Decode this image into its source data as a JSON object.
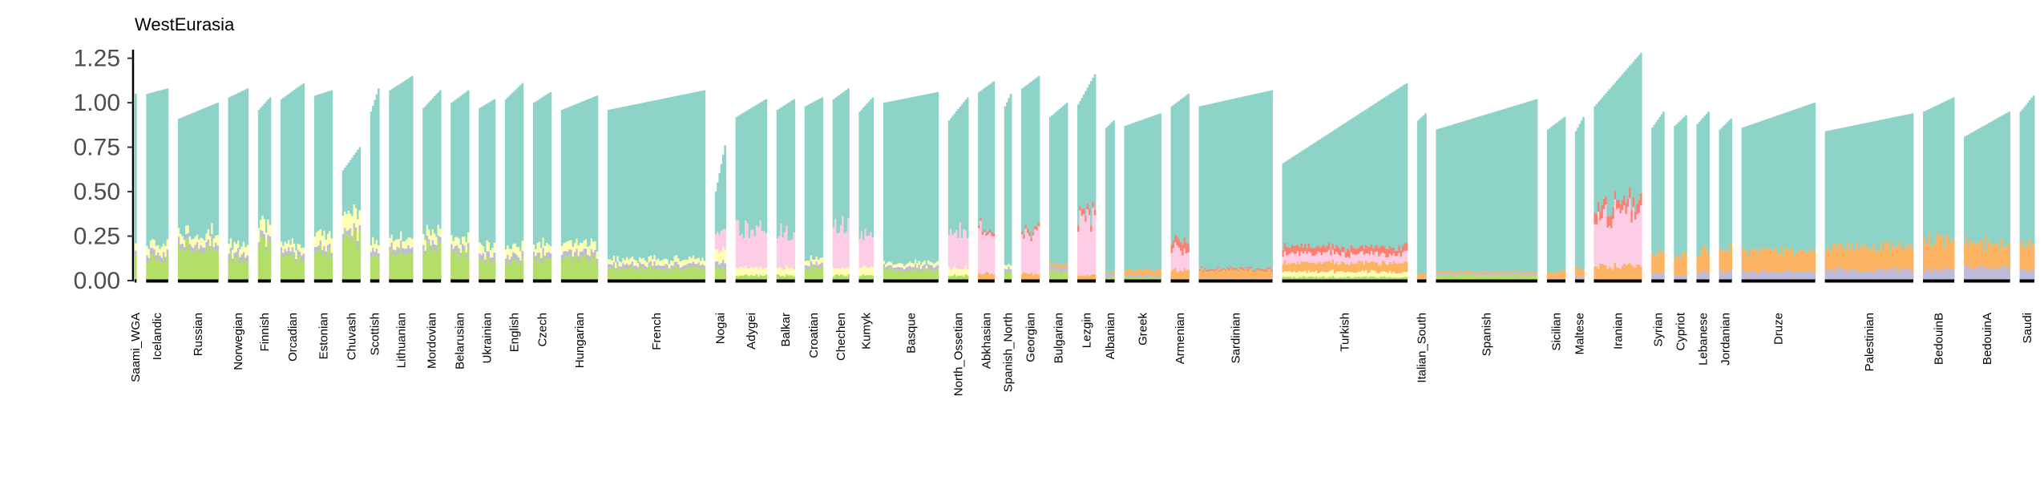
{
  "chart_data": {
    "type": "bar",
    "stacked": true,
    "title": "WestEurasia",
    "xlabel": "",
    "ylabel": "",
    "ylim": [
      0,
      1.28
    ],
    "yticks": [
      "0.00",
      "0.25",
      "0.50",
      "0.75",
      "1.00",
      "1.25"
    ],
    "ytick_values": [
      0,
      0.25,
      0.5,
      0.75,
      1.0,
      1.25
    ],
    "grid": false,
    "legend": "none",
    "components": [
      "green",
      "purple",
      "yellow",
      "orange",
      "pink",
      "red",
      "teal"
    ],
    "colors": {
      "teal": "#8dd3c7",
      "green": "#b3de69",
      "yellow": "#ffffb3",
      "purple": "#bebada",
      "pink": "#fccde5",
      "orange": "#fdb462",
      "red": "#fb8072",
      "baseline": "#000000"
    },
    "groups": [
      {
        "name": "Saami_WGA",
        "n": 1,
        "total": [
          1.05,
          1.05
        ],
        "comp": {
          "green": 0.12,
          "purple": 0.03,
          "yellow": 0.04
        }
      },
      {
        "name": "Icelandic",
        "n": 12,
        "total": [
          1.05,
          1.08
        ],
        "comp": {
          "green": 0.12,
          "purple": 0.03,
          "yellow": 0.05
        }
      },
      {
        "name": "Russian",
        "n": 22,
        "total": [
          0.91,
          1.0
        ],
        "comp": {
          "green": 0.2,
          "purple": 0.03,
          "yellow": 0.05
        }
      },
      {
        "name": "Norwegian",
        "n": 11,
        "total": [
          1.03,
          1.08
        ],
        "comp": {
          "green": 0.13,
          "purple": 0.03,
          "yellow": 0.05
        }
      },
      {
        "name": "Finnish",
        "n": 7,
        "total": [
          0.96,
          1.03
        ],
        "comp": {
          "green": 0.22,
          "purple": 0.03,
          "yellow": 0.07
        }
      },
      {
        "name": "Orcadian",
        "n": 13,
        "total": [
          1.02,
          1.11
        ],
        "comp": {
          "green": 0.13,
          "purple": 0.03,
          "yellow": 0.04
        }
      },
      {
        "name": "Estonian",
        "n": 10,
        "total": [
          1.04,
          1.07
        ],
        "comp": {
          "green": 0.16,
          "purple": 0.03,
          "yellow": 0.07
        }
      },
      {
        "name": "Chuvash",
        "n": 10,
        "total": [
          0.62,
          0.75
        ],
        "comp": {
          "green": 0.24,
          "purple": 0.03,
          "yellow": 0.1
        }
      },
      {
        "name": "Scottish",
        "n": 5,
        "total": [
          0.95,
          1.08
        ],
        "comp": {
          "green": 0.14,
          "purple": 0.03,
          "yellow": 0.05
        }
      },
      {
        "name": "Lithuanian",
        "n": 13,
        "total": [
          1.07,
          1.15
        ],
        "comp": {
          "green": 0.16,
          "purple": 0.03,
          "yellow": 0.05
        }
      },
      {
        "name": "Mordovian",
        "n": 10,
        "total": [
          0.97,
          1.07
        ],
        "comp": {
          "green": 0.18,
          "purple": 0.03,
          "yellow": 0.05
        }
      },
      {
        "name": "Belarusian",
        "n": 10,
        "total": [
          1.0,
          1.07
        ],
        "comp": {
          "green": 0.15,
          "purple": 0.03,
          "yellow": 0.05
        }
      },
      {
        "name": "Ukrainian",
        "n": 9,
        "total": [
          0.97,
          1.02
        ],
        "comp": {
          "green": 0.12,
          "purple": 0.03,
          "yellow": 0.05
        }
      },
      {
        "name": "English",
        "n": 10,
        "total": [
          1.02,
          1.11
        ],
        "comp": {
          "green": 0.11,
          "purple": 0.03,
          "yellow": 0.05
        }
      },
      {
        "name": "Czech",
        "n": 10,
        "total": [
          1.0,
          1.06
        ],
        "comp": {
          "green": 0.12,
          "purple": 0.03,
          "yellow": 0.05
        }
      },
      {
        "name": "Hungarian",
        "n": 20,
        "total": [
          0.96,
          1.04
        ],
        "comp": {
          "green": 0.12,
          "purple": 0.03,
          "yellow": 0.05
        }
      },
      {
        "name": "French",
        "n": 53,
        "total": [
          0.96,
          1.07
        ],
        "comp": {
          "green": 0.07,
          "purple": 0.02,
          "yellow": 0.03
        }
      },
      {
        "name": "Nogai",
        "n": 6,
        "total": [
          0.5,
          0.76
        ],
        "comp": {
          "green": 0.07,
          "pink": 0.1,
          "purple": 0.03,
          "yellow": 0.07
        }
      },
      {
        "name": "Adygei",
        "n": 17,
        "total": [
          0.92,
          1.02
        ],
        "comp": {
          "pink": 0.22,
          "green": 0.03,
          "yellow": 0.04
        }
      },
      {
        "name": "Balkar",
        "n": 10,
        "total": [
          0.96,
          1.02
        ],
        "comp": {
          "pink": 0.2,
          "green": 0.03,
          "yellow": 0.04
        }
      },
      {
        "name": "Croatian",
        "n": 10,
        "total": [
          0.98,
          1.03
        ],
        "comp": {
          "green": 0.07,
          "purple": 0.02,
          "yellow": 0.03
        }
      },
      {
        "name": "Chechen",
        "n": 9,
        "total": [
          1.02,
          1.08
        ],
        "comp": {
          "pink": 0.26,
          "green": 0.03,
          "yellow": 0.04
        }
      },
      {
        "name": "Kumyk",
        "n": 8,
        "total": [
          0.95,
          1.03
        ],
        "comp": {
          "pink": 0.18,
          "green": 0.03,
          "yellow": 0.05
        }
      },
      {
        "name": "Basque",
        "n": 30,
        "total": [
          1.0,
          1.06
        ],
        "comp": {
          "green": 0.06,
          "purple": 0.02,
          "yellow": 0.02
        }
      },
      {
        "name": "North_Ossetian",
        "n": 11,
        "total": [
          0.9,
          1.03
        ],
        "comp": {
          "pink": 0.21,
          "green": 0.03,
          "yellow": 0.04
        }
      },
      {
        "name": "Abkhasian",
        "n": 9,
        "total": [
          1.06,
          1.12
        ],
        "comp": {
          "pink": 0.24,
          "orange": 0.04,
          "red": 0.02
        }
      },
      {
        "name": "Spanish_North",
        "n": 4,
        "total": [
          0.98,
          1.05
        ],
        "comp": {
          "green": 0.05,
          "purple": 0.02,
          "yellow": 0.02
        }
      },
      {
        "name": "Georgian",
        "n": 10,
        "total": [
          1.08,
          1.15
        ],
        "comp": {
          "pink": 0.22,
          "orange": 0.04,
          "red": 0.02
        }
      },
      {
        "name": "Bulgarian",
        "n": 10,
        "total": [
          0.92,
          1.0
        ],
        "comp": {
          "green": 0.05,
          "purple": 0.02,
          "orange": 0.02
        }
      },
      {
        "name": "Lezgin",
        "n": 10,
        "total": [
          0.99,
          1.16
        ],
        "comp": {
          "pink": 0.3,
          "orange": 0.03,
          "red": 0.03
        }
      },
      {
        "name": "Albanian",
        "n": 5,
        "total": [
          0.86,
          0.9
        ],
        "comp": {
          "green": 0.02,
          "purple": 0.02,
          "orange": 0.01
        }
      },
      {
        "name": "Greek",
        "n": 20,
        "total": [
          0.87,
          0.94
        ],
        "comp": {
          "orange": 0.03,
          "purple": 0.01,
          "green": 0.02
        }
      },
      {
        "name": "Armenian",
        "n": 10,
        "total": [
          0.98,
          1.05
        ],
        "comp": {
          "pink": 0.12,
          "orange": 0.06,
          "red": 0.05
        }
      },
      {
        "name": "Sardinian",
        "n": 40,
        "total": [
          0.98,
          1.07
        ],
        "comp": {
          "orange": 0.05,
          "purple": 0.01,
          "red": 0.01
        }
      },
      {
        "name": "Turkish",
        "n": 68,
        "total": [
          0.66,
          1.11
        ],
        "comp": {
          "pink": 0.05,
          "orange": 0.05,
          "red": 0.04,
          "yellow": 0.03,
          "green": 0.02
        }
      },
      {
        "name": "Italian_South",
        "n": 5,
        "total": [
          0.9,
          0.94
        ],
        "comp": {
          "orange": 0.03,
          "purple": 0.01
        }
      },
      {
        "name": "Spanish",
        "n": 55,
        "total": [
          0.85,
          1.02
        ],
        "comp": {
          "green": 0.03,
          "purple": 0.01,
          "orange": 0.01
        }
      },
      {
        "name": "Sicilian",
        "n": 10,
        "total": [
          0.85,
          0.92
        ],
        "comp": {
          "orange": 0.04,
          "purple": 0.01
        }
      },
      {
        "name": "Maltese",
        "n": 5,
        "total": [
          0.84,
          0.92
        ],
        "comp": {
          "orange": 0.05,
          "purple": 0.02
        }
      },
      {
        "name": "Iranian",
        "n": 26,
        "total": [
          0.98,
          1.28
        ],
        "comp": {
          "pink": 0.3,
          "orange": 0.08,
          "red": 0.06
        }
      },
      {
        "name": "Syrian",
        "n": 7,
        "total": [
          0.86,
          0.95
        ],
        "comp": {
          "orange": 0.11,
          "purple": 0.04
        }
      },
      {
        "name": "Cypriot",
        "n": 7,
        "total": [
          0.87,
          0.93
        ],
        "comp": {
          "orange": 0.11,
          "purple": 0.03
        }
      },
      {
        "name": "Lebanese",
        "n": 7,
        "total": [
          0.88,
          0.95
        ],
        "comp": {
          "orange": 0.12,
          "purple": 0.05
        }
      },
      {
        "name": "Jordanian",
        "n": 7,
        "total": [
          0.85,
          0.91
        ],
        "comp": {
          "orange": 0.12,
          "purple": 0.05
        }
      },
      {
        "name": "Druze",
        "n": 40,
        "total": [
          0.86,
          1.0
        ],
        "comp": {
          "orange": 0.12,
          "purple": 0.05
        }
      },
      {
        "name": "Palestinian",
        "n": 48,
        "total": [
          0.84,
          0.94
        ],
        "comp": {
          "orange": 0.13,
          "purple": 0.06
        }
      },
      {
        "name": "BedouinB",
        "n": 17,
        "total": [
          0.95,
          1.03
        ],
        "comp": {
          "orange": 0.17,
          "purple": 0.06
        }
      },
      {
        "name": "BedouinA",
        "n": 25,
        "total": [
          0.81,
          0.95
        ],
        "comp": {
          "orange": 0.14,
          "purple": 0.07
        }
      },
      {
        "name": "Saudi",
        "n": 8,
        "total": [
          0.95,
          1.04
        ],
        "comp": {
          "orange": 0.15,
          "purple": 0.06
        }
      }
    ]
  }
}
